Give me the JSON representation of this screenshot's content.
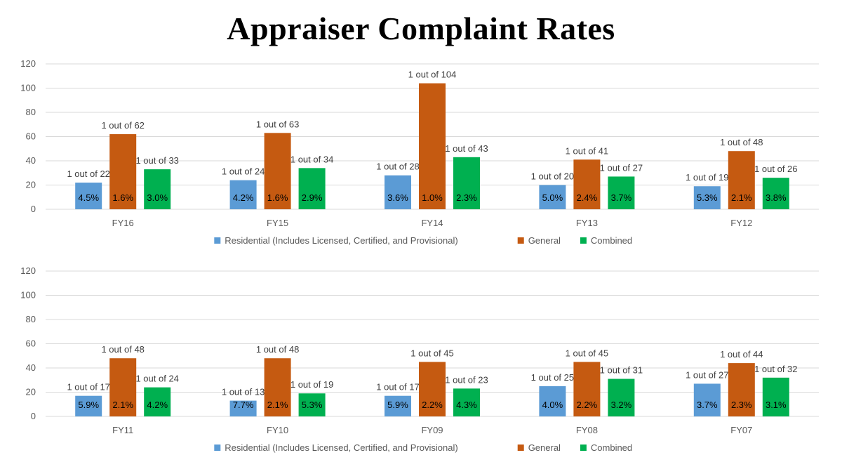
{
  "title": "Appraiser Complaint Rates",
  "colors": {
    "Residential": "#5b9bd5",
    "General": "#c55a11",
    "Combined": "#00b050"
  },
  "chart_data": [
    {
      "type": "bar",
      "ylim": [
        0,
        120
      ],
      "yticks": [
        0,
        20,
        40,
        60,
        80,
        100,
        120
      ],
      "grid": true,
      "legend_position": "bottom",
      "categories": [
        "FY16",
        "FY15",
        "FY14",
        "FY13",
        "FY12"
      ],
      "series": [
        {
          "name": "Residential (Includes Licensed, Certified, and Provisional)",
          "key": "Residential",
          "values": [
            22,
            24,
            28,
            20,
            19
          ],
          "labels": [
            "1 out of 22",
            "1 out of 24",
            "1 out of 28",
            "1 out of 20",
            "1 out of 19"
          ],
          "pct": [
            "4.5%",
            "4.2%",
            "3.6%",
            "5.0%",
            "5.3%"
          ]
        },
        {
          "name": "General",
          "key": "General",
          "values": [
            62,
            63,
            104,
            41,
            48
          ],
          "labels": [
            "1 out of 62",
            "1 out of 63",
            "1 out of 104",
            "1 out of 41",
            "1 out of 48"
          ],
          "pct": [
            "1.6%",
            "1.6%",
            "1.0%",
            "2.4%",
            "2.1%"
          ]
        },
        {
          "name": "Combined",
          "key": "Combined",
          "values": [
            33,
            34,
            43,
            27,
            26
          ],
          "labels": [
            "1 out of 33",
            "1 out of 34",
            "1 out of 43",
            "1 out of 27",
            "1 out of 26"
          ],
          "pct": [
            "3.0%",
            "2.9%",
            "2.3%",
            "3.7%",
            "3.8%"
          ]
        }
      ]
    },
    {
      "type": "bar",
      "ylim": [
        0,
        120
      ],
      "yticks": [
        0,
        20,
        40,
        60,
        80,
        100,
        120
      ],
      "grid": true,
      "legend_position": "bottom",
      "categories": [
        "FY11",
        "FY10",
        "FY09",
        "FY08",
        "FY07"
      ],
      "series": [
        {
          "name": "Residential (Includes Licensed, Certified, and Provisional)",
          "key": "Residential",
          "values": [
            17,
            13,
            17,
            25,
            27
          ],
          "labels": [
            "1 out of 17",
            "1 out of 13",
            "1 out of 17",
            "1 out of 25",
            "1 out of 27"
          ],
          "pct": [
            "5.9%",
            "7.7%",
            "5.9%",
            "4.0%",
            "3.7%"
          ]
        },
        {
          "name": "General",
          "key": "General",
          "values": [
            48,
            48,
            45,
            45,
            44
          ],
          "labels": [
            "1 out of 48",
            "1 out of 48",
            "1 out of 45",
            "1 out of 45",
            "1 out of 44"
          ],
          "pct": [
            "2.1%",
            "2.1%",
            "2.2%",
            "2.2%",
            "2.3%"
          ]
        },
        {
          "name": "Combined",
          "key": "Combined",
          "values": [
            24,
            19,
            23,
            31,
            32
          ],
          "labels": [
            "1 out of 24",
            "1 out of 19",
            "1 out of 23",
            "1 out of 31",
            "1 out of 32"
          ],
          "pct": [
            "4.2%",
            "5.3%",
            "4.3%",
            "3.2%",
            "3.1%"
          ]
        }
      ]
    }
  ]
}
